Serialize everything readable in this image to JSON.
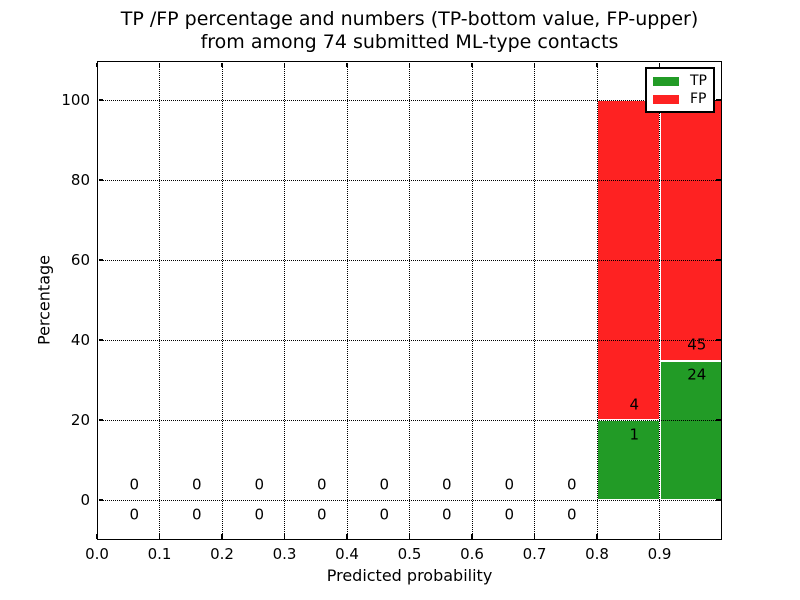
{
  "chart_data": {
    "type": "bar",
    "stacked": true,
    "title_line1": "TP /FP percentage and numbers (TP-bottom value, FP-upper)",
    "title_line2": "from among 74 submitted ML-type contacts",
    "xlabel": "Predicted probability",
    "ylabel": "Percentage",
    "xlim": [
      0.0,
      1.0
    ],
    "ylim": [
      -10,
      110
    ],
    "x_tick_labels": [
      "0.0",
      "0.1",
      "0.2",
      "0.3",
      "0.4",
      "0.5",
      "0.6",
      "0.7",
      "0.8",
      "0.9"
    ],
    "y_tick_values": [
      0,
      20,
      40,
      60,
      80,
      100
    ],
    "grid": {
      "style": "dotted",
      "color": "#000000",
      "above_bars": true
    },
    "total_contacts": 74,
    "value_label_note": "TP count shown below segment boundary, FP count above",
    "colors": {
      "tp": "#229b26",
      "fp": "#fe2222",
      "bar_edge": "#ffffff"
    },
    "legend": {
      "position": "upper-right",
      "entries": [
        {
          "label": "TP",
          "color": "#229b26"
        },
        {
          "label": "FP",
          "color": "#fe2222"
        }
      ]
    },
    "bins": [
      {
        "range": [
          0.0,
          0.1
        ],
        "tp": 0,
        "fp": 0,
        "tp_pct": 0,
        "fp_pct": 0
      },
      {
        "range": [
          0.1,
          0.2
        ],
        "tp": 0,
        "fp": 0,
        "tp_pct": 0,
        "fp_pct": 0
      },
      {
        "range": [
          0.2,
          0.3
        ],
        "tp": 0,
        "fp": 0,
        "tp_pct": 0,
        "fp_pct": 0
      },
      {
        "range": [
          0.3,
          0.4
        ],
        "tp": 0,
        "fp": 0,
        "tp_pct": 0,
        "fp_pct": 0
      },
      {
        "range": [
          0.4,
          0.5
        ],
        "tp": 0,
        "fp": 0,
        "tp_pct": 0,
        "fp_pct": 0
      },
      {
        "range": [
          0.5,
          0.6
        ],
        "tp": 0,
        "fp": 0,
        "tp_pct": 0,
        "fp_pct": 0
      },
      {
        "range": [
          0.6,
          0.7
        ],
        "tp": 0,
        "fp": 0,
        "tp_pct": 0,
        "fp_pct": 0
      },
      {
        "range": [
          0.7,
          0.8
        ],
        "tp": 0,
        "fp": 0,
        "tp_pct": 0,
        "fp_pct": 0
      },
      {
        "range": [
          0.8,
          0.9
        ],
        "tp": 1,
        "fp": 4,
        "tp_pct": 20.0,
        "fp_pct": 80.0
      },
      {
        "range": [
          0.9,
          1.0
        ],
        "tp": 24,
        "fp": 45,
        "tp_pct": 34.78,
        "fp_pct": 65.22
      }
    ]
  }
}
